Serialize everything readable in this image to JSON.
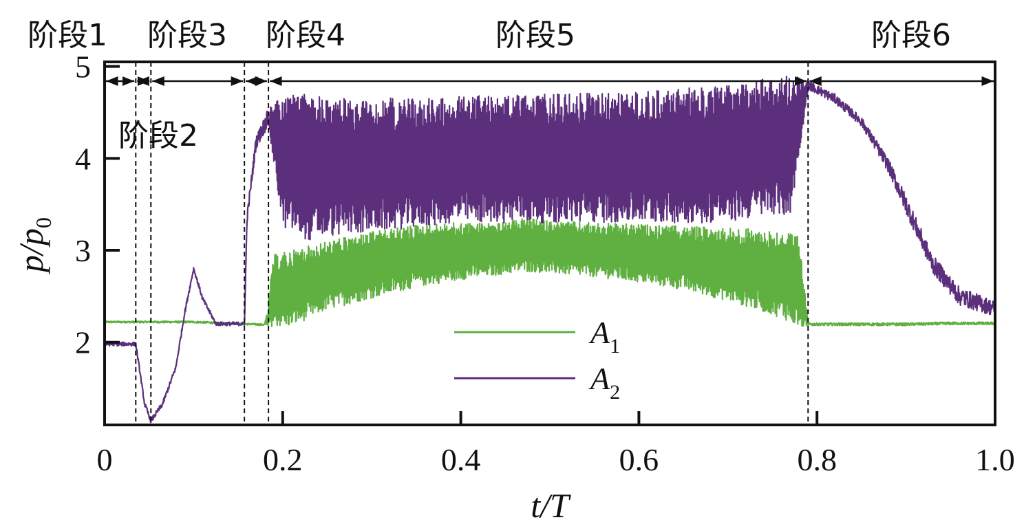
{
  "chart_data": {
    "type": "line",
    "xlabel": "t/T",
    "ylabel": "p/p0",
    "xlim": [
      0,
      1.0
    ],
    "ylim": [
      1.1,
      5.05
    ],
    "x_ticks": [
      {
        "value": 0,
        "label": "0"
      },
      {
        "value": 0.2,
        "label": "0.2"
      },
      {
        "value": 0.4,
        "label": "0.4"
      },
      {
        "value": 0.6,
        "label": "0.6"
      },
      {
        "value": 0.8,
        "label": "0.8"
      },
      {
        "value": 1.0,
        "label": "1.0"
      }
    ],
    "y_ticks": [
      {
        "value": 2,
        "label": "2"
      },
      {
        "value": 3,
        "label": "3"
      },
      {
        "value": 4,
        "label": "4"
      },
      {
        "value": 5,
        "label": "5"
      }
    ],
    "stage_boundaries": [
      0.035,
      0.052,
      0.157,
      0.184,
      0.79
    ],
    "stages": [
      {
        "label": "阶段1",
        "from": 0,
        "to": 0.035
      },
      {
        "label": "阶段2",
        "from": 0.035,
        "to": 0.052
      },
      {
        "label": "阶段3",
        "from": 0.052,
        "to": 0.157
      },
      {
        "label": "阶段4",
        "from": 0.157,
        "to": 0.184
      },
      {
        "label": "阶段5",
        "from": 0.184,
        "to": 0.79
      },
      {
        "label": "阶段6",
        "from": 0.79,
        "to": 1.0
      }
    ],
    "legend": {
      "placement": "lower-center"
    },
    "series": [
      {
        "name": "A1",
        "color": "#5fb040",
        "envelope": true,
        "x": [
          0,
          0.1,
          0.18,
          0.19,
          0.21,
          0.25,
          0.3,
          0.35,
          0.4,
          0.45,
          0.47,
          0.5,
          0.55,
          0.6,
          0.65,
          0.7,
          0.75,
          0.77,
          0.78,
          0.79,
          0.85,
          0.9,
          0.95,
          1.0
        ],
        "low": [
          2.21,
          2.21,
          2.18,
          2.17,
          2.17,
          2.35,
          2.48,
          2.6,
          2.68,
          2.74,
          2.77,
          2.75,
          2.71,
          2.65,
          2.57,
          2.45,
          2.3,
          2.22,
          2.15,
          2.18,
          2.18,
          2.18,
          2.19,
          2.19
        ],
        "high": [
          2.23,
          2.23,
          2.2,
          2.95,
          3.0,
          3.1,
          3.2,
          3.28,
          3.3,
          3.3,
          3.35,
          3.32,
          3.3,
          3.28,
          3.26,
          3.25,
          3.22,
          3.2,
          3.15,
          2.21,
          2.21,
          2.21,
          2.22,
          2.22
        ]
      },
      {
        "name": "A2",
        "color": "#5b2f7c",
        "envelope": true,
        "x": [
          0,
          0.035,
          0.045,
          0.052,
          0.065,
          0.08,
          0.09,
          0.1,
          0.11,
          0.125,
          0.157,
          0.16,
          0.17,
          0.184,
          0.2,
          0.23,
          0.25,
          0.3,
          0.4,
          0.5,
          0.6,
          0.7,
          0.75,
          0.77,
          0.79,
          0.82,
          0.85,
          0.88,
          0.9,
          0.93,
          0.96,
          1.0
        ],
        "low": [
          1.96,
          1.96,
          1.3,
          1.12,
          1.3,
          1.7,
          2.3,
          2.78,
          2.45,
          2.18,
          2.18,
          3.3,
          4.1,
          4.35,
          3.25,
          3.1,
          3.15,
          3.2,
          3.3,
          3.3,
          3.3,
          3.3,
          3.4,
          3.35,
          4.75,
          4.6,
          4.35,
          3.85,
          3.4,
          2.75,
          2.4,
          2.28
        ],
        "high": [
          2.0,
          2.0,
          1.35,
          1.17,
          1.35,
          1.75,
          2.35,
          2.82,
          2.5,
          2.22,
          2.22,
          3.4,
          4.25,
          4.55,
          4.7,
          4.72,
          4.65,
          4.65,
          4.68,
          4.7,
          4.72,
          4.8,
          4.88,
          4.92,
          4.85,
          4.7,
          4.45,
          4.0,
          3.6,
          2.95,
          2.6,
          2.45
        ]
      }
    ]
  }
}
